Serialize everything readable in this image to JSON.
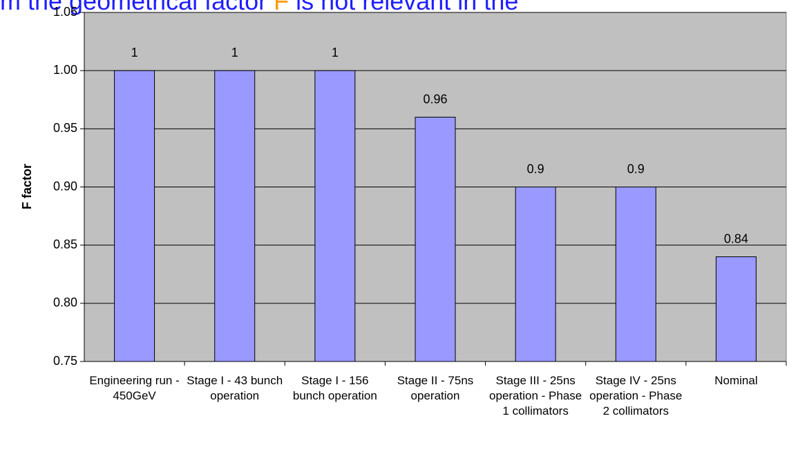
{
  "chart_data": {
    "type": "bar",
    "title_parts": [
      "m the geometrical factor ",
      "F",
      " is not relevant in the"
    ],
    "title_colors": [
      "#1f1fff",
      "#ff9900",
      "#1f1fff"
    ],
    "ylabel": "F factor",
    "categories": [
      "Engineering run - 450GeV",
      "Stage I - 43 bunch operation",
      "Stage I - 156 bunch operation",
      "Stage II - 75ns operation",
      "Stage III - 25ns operation - Phase 1 collimators",
      "Stage IV - 25ns operation - Phase 2 collimators",
      "Nominal"
    ],
    "values": [
      1,
      1,
      1,
      0.96,
      0.9,
      0.9,
      0.84
    ],
    "color": "#9999ff",
    "ylim": [
      0.75,
      1.05
    ],
    "yticks": [
      0.75,
      {
        "value": 0.8,
        "label": "0.80"
      },
      0.85,
      {
        "value": 0.9,
        "label": "0.90"
      },
      0.95,
      {
        "value": 1.0,
        "label": "1.00"
      },
      1.05
    ],
    "grid": true
  }
}
